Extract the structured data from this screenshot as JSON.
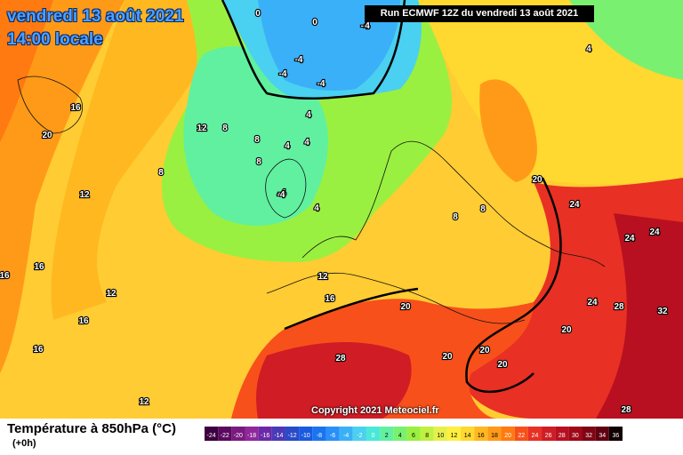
{
  "header": {
    "date_line": "vendredi 13 août 2021",
    "time_line": "14:00 locale",
    "run_info": "Run ECMWF 12Z du vendredi 13 août 2021"
  },
  "copyright": "Copyright 2021 Meteociel.fr",
  "legend": {
    "title": "Température à 850hPa (°C)",
    "subtitle": "(+0h)",
    "ticks": [
      "-24",
      "-22",
      "-20",
      "-18",
      "-16",
      "-14",
      "-12",
      "-10",
      "-8",
      "-6",
      "-4",
      "-2",
      "0",
      "2",
      "4",
      "6",
      "8",
      "10",
      "12",
      "14",
      "16",
      "18",
      "20",
      "22",
      "24",
      "26",
      "28",
      "30",
      "32",
      "34",
      "36"
    ],
    "colors": [
      "#3d0040",
      "#5a0a5e",
      "#7a1a80",
      "#90289a",
      "#6a2aa8",
      "#4a3ab8",
      "#2a4ac8",
      "#1a5ae0",
      "#1a74f0",
      "#2a90f8",
      "#3ab0f8",
      "#4ad0f0",
      "#4ae8d8",
      "#60f0a0",
      "#7af070",
      "#9af040",
      "#c0f040",
      "#e6f04a",
      "#fff040",
      "#ffd830",
      "#ffb820",
      "#ff9a18",
      "#ff7a10",
      "#f8501a",
      "#e83024",
      "#d01c24",
      "#b81020",
      "#a00818",
      "#800414",
      "#600010",
      "#100000"
    ]
  },
  "map_labels": [
    {
      "text": "0"
    },
    {
      "text": "0"
    },
    {
      "text": "-4"
    },
    {
      "text": "-4"
    },
    {
      "text": "-4"
    },
    {
      "text": "-4"
    },
    {
      "text": "-4"
    },
    {
      "text": "4"
    },
    {
      "text": "4"
    },
    {
      "text": "4"
    },
    {
      "text": "16"
    },
    {
      "text": "20"
    },
    {
      "text": "12"
    },
    {
      "text": "8"
    },
    {
      "text": "8"
    },
    {
      "text": "8"
    },
    {
      "text": "4"
    },
    {
      "text": "4"
    },
    {
      "text": "8"
    },
    {
      "text": "12"
    },
    {
      "text": "-4"
    },
    {
      "text": "4"
    },
    {
      "text": "8"
    },
    {
      "text": "8"
    },
    {
      "text": "20"
    },
    {
      "text": "24"
    },
    {
      "text": "24"
    },
    {
      "text": "24"
    },
    {
      "text": "16"
    },
    {
      "text": "16"
    },
    {
      "text": "12"
    },
    {
      "text": "12"
    },
    {
      "text": "16"
    },
    {
      "text": "16"
    },
    {
      "text": "16"
    },
    {
      "text": "20"
    },
    {
      "text": "24"
    },
    {
      "text": "28"
    },
    {
      "text": "32"
    },
    {
      "text": "20"
    },
    {
      "text": "20"
    },
    {
      "text": "20"
    },
    {
      "text": "20"
    },
    {
      "text": "28"
    },
    {
      "text": "12"
    },
    {
      "text": "28"
    }
  ]
}
